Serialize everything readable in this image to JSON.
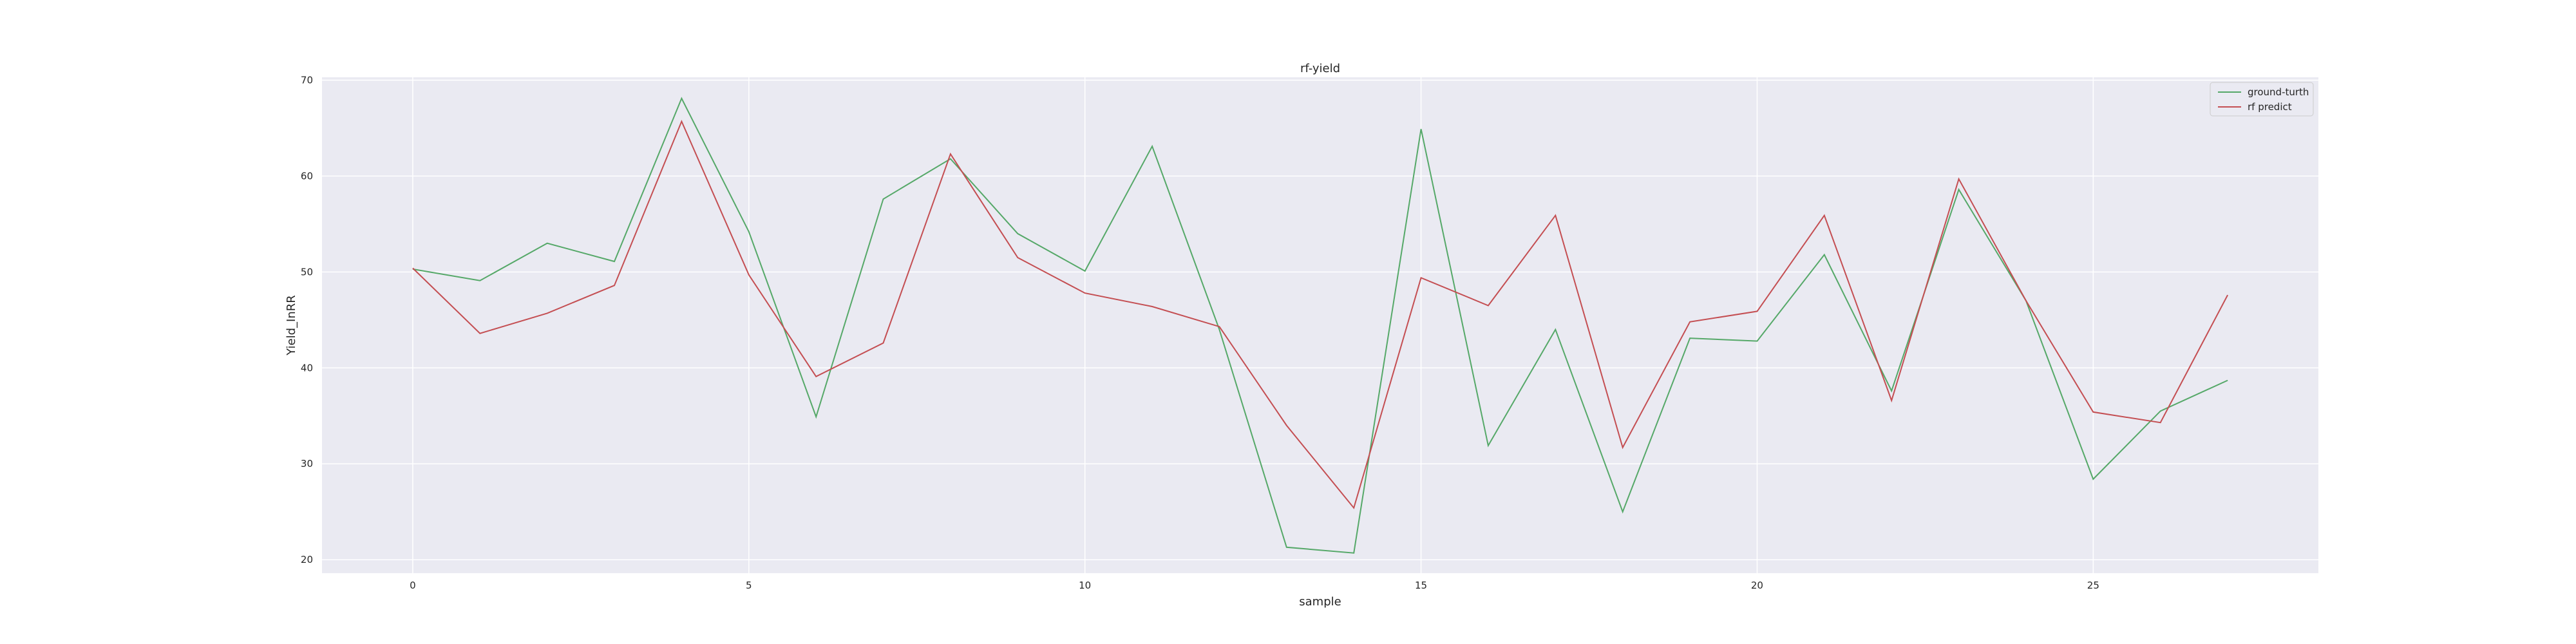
{
  "chart_data": {
    "type": "line",
    "title": "rf-yield",
    "xlabel": "sample",
    "ylabel": "Yield_InRR",
    "xlim": [
      -1.35,
      28.35
    ],
    "ylim": [
      18.6,
      70.3
    ],
    "xticks": [
      0,
      5,
      10,
      15,
      20,
      25
    ],
    "yticks": [
      20,
      30,
      40,
      50,
      60,
      70
    ],
    "grid": true,
    "legend_position": "top-right",
    "x": [
      0,
      1,
      2,
      3,
      4,
      5,
      6,
      7,
      8,
      9,
      10,
      11,
      12,
      13,
      14,
      15,
      16,
      17,
      18,
      19,
      20,
      21,
      22,
      23,
      24,
      25,
      26,
      27
    ],
    "series": [
      {
        "name": "ground-turth",
        "color": "#55a868",
        "values": [
          50.3,
          49.1,
          53.0,
          51.1,
          68.1,
          54.2,
          34.9,
          57.6,
          61.8,
          54.0,
          50.1,
          63.1,
          44.0,
          21.3,
          20.7,
          64.9,
          31.9,
          44.0,
          25.0,
          43.1,
          42.8,
          51.8,
          37.6,
          58.6,
          47.0,
          28.4,
          35.5,
          38.7
        ]
      },
      {
        "name": "rf predict",
        "color": "#c44e52",
        "values": [
          50.4,
          43.6,
          45.7,
          48.6,
          65.7,
          49.7,
          39.1,
          42.6,
          62.3,
          51.5,
          47.8,
          46.4,
          44.3,
          34.0,
          25.4,
          49.4,
          46.5,
          55.9,
          31.7,
          44.8,
          45.9,
          55.9,
          36.6,
          59.7,
          47.0,
          35.4,
          34.3,
          47.6
        ]
      }
    ]
  }
}
